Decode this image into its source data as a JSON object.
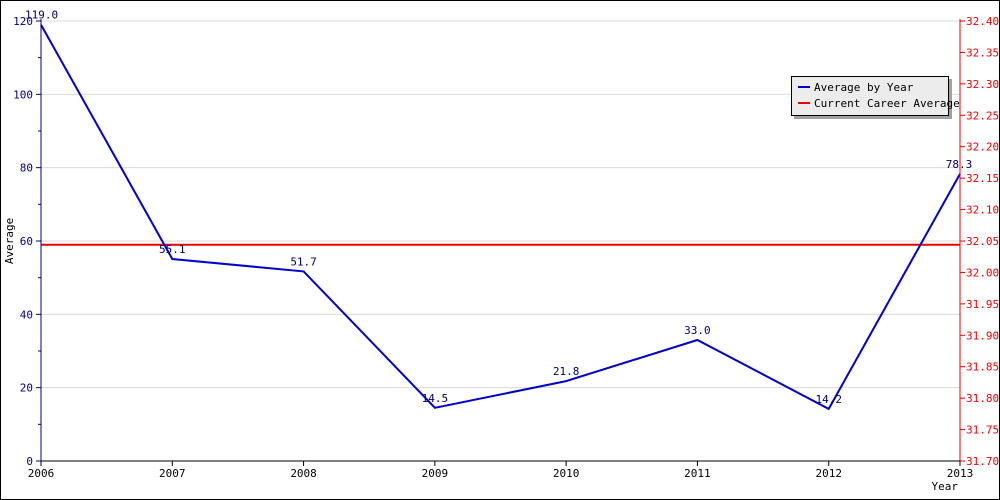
{
  "chart_data": {
    "type": "line",
    "x": [
      2006,
      2007,
      2008,
      2009,
      2010,
      2011,
      2012,
      2013
    ],
    "series": [
      {
        "name": "Average by Year",
        "values": [
          119.0,
          55.1,
          51.7,
          14.5,
          21.8,
          33.0,
          14.2,
          78.3
        ],
        "labels": [
          "119.0",
          "55.1",
          "51.7",
          "14.5",
          "21.8",
          "33.0",
          "14.2",
          "78.3"
        ],
        "color": "#0000cc",
        "axis": "left"
      },
      {
        "name": "Current Career Average",
        "value": 32.044,
        "color": "#ee0000",
        "axis": "right"
      }
    ],
    "xlabel": "Year",
    "ylabel": "Average",
    "ylim_left": [
      0,
      120
    ],
    "ylim_right": [
      31.7,
      32.4
    ],
    "yticks_left": [
      "0",
      "20",
      "40",
      "60",
      "80",
      "100",
      "120"
    ],
    "yticks_right": [
      "31.70",
      "31.75",
      "31.80",
      "31.85",
      "31.90",
      "31.95",
      "32.00",
      "32.05",
      "32.10",
      "32.15",
      "32.20",
      "32.25",
      "32.30",
      "32.35",
      "32.40"
    ],
    "xticks": [
      "2006",
      "2007",
      "2008",
      "2009",
      "2010",
      "2011",
      "2012",
      "2013"
    ],
    "grid": true,
    "legend_position": "top-right"
  },
  "colors": {
    "left_axis": "#000080",
    "right_axis": "#ee0000",
    "grid": "#d9d9d9"
  }
}
